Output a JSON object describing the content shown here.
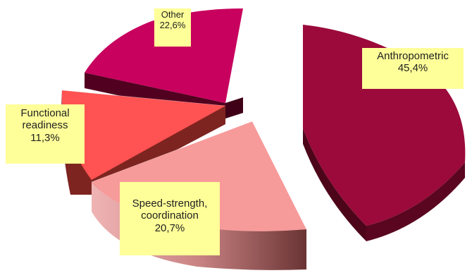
{
  "chart_data": {
    "type": "pie",
    "style": "3d-exploded",
    "slices": [
      {
        "label": "Anthropometric",
        "value": 45.4,
        "display": "45,4%",
        "color": "#9b0a3b",
        "side_color": "#4d0519"
      },
      {
        "label": "Speed-strength, coordination",
        "value": 20.7,
        "display": "20,7%",
        "color": "#f79a9a",
        "side_color": "#7a4040"
      },
      {
        "label": "Functional readiness",
        "value": 11.3,
        "display": "11,3%",
        "color": "#ff5252",
        "side_color": "#7e2420"
      },
      {
        "label": "Other",
        "value": 22.6,
        "display": "22,6%",
        "color": "#c8005e",
        "side_color": "#52001f"
      }
    ],
    "label_lines": {
      "anthropometric": [
        "Anthropometric",
        "45,4%"
      ],
      "speed_strength": [
        "Speed-strength,",
        "coordination",
        "20,7%"
      ],
      "functional": [
        "Functional",
        "readiness",
        "11,3%"
      ],
      "other": [
        "Other",
        "22,6%"
      ]
    },
    "label_background": "#ffff99",
    "legend": "none"
  }
}
